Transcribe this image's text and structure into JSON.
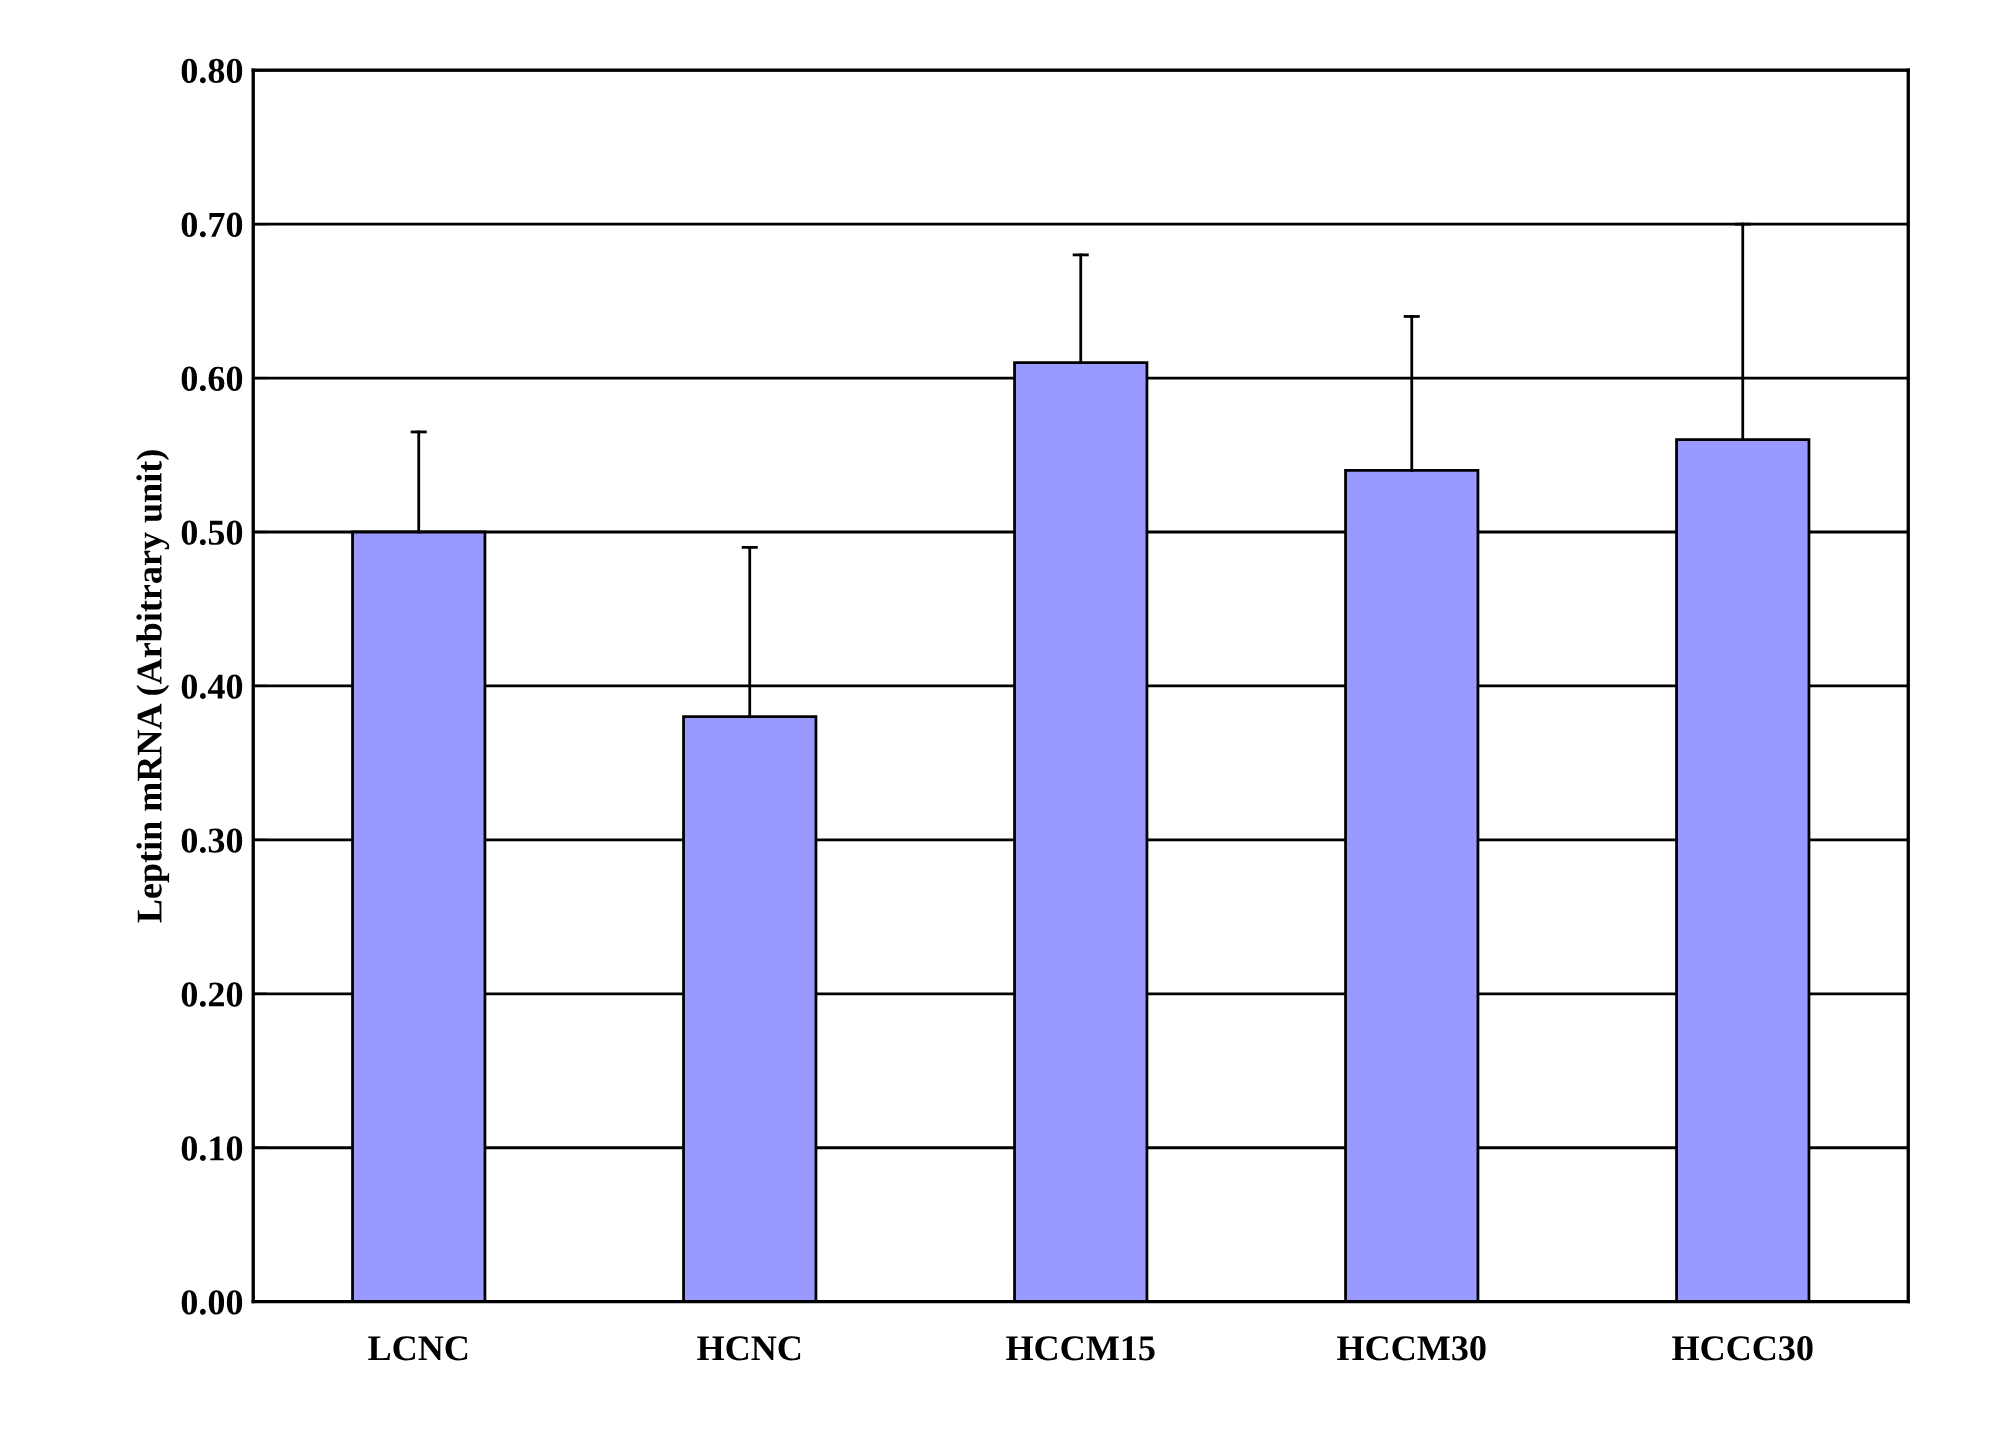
{
  "chart_data": {
    "type": "bar",
    "ylabel": "Leptin mRNA (Arbitrary unit)",
    "categories": [
      "LCNC",
      "HCNC",
      "HCCM15",
      "HCCM30",
      "HCCC30"
    ],
    "values": [
      0.5,
      0.38,
      0.61,
      0.54,
      0.56
    ],
    "errors": [
      [
        0.5,
        0.565
      ],
      [
        0.38,
        0.49
      ],
      [
        0.61,
        0.68
      ],
      [
        0.54,
        0.64
      ],
      [
        0.56,
        0.7
      ]
    ],
    "color": "#9999ff",
    "ylim": [
      0,
      0.8
    ],
    "yticks": [
      {
        "value": 0,
        "label": "0.00"
      },
      {
        "value": 0.1,
        "label": "0.10"
      },
      {
        "value": 0.2,
        "label": "0.20"
      },
      {
        "value": 0.3,
        "label": "0.30"
      },
      {
        "value": 0.4,
        "label": "0.40"
      },
      {
        "value": 0.5,
        "label": "0.50"
      },
      {
        "value": 0.6,
        "label": "0.60"
      },
      {
        "value": 0.7,
        "label": "0.70"
      },
      {
        "value": 0.8,
        "label": "0.80"
      }
    ],
    "grid": "y"
  }
}
